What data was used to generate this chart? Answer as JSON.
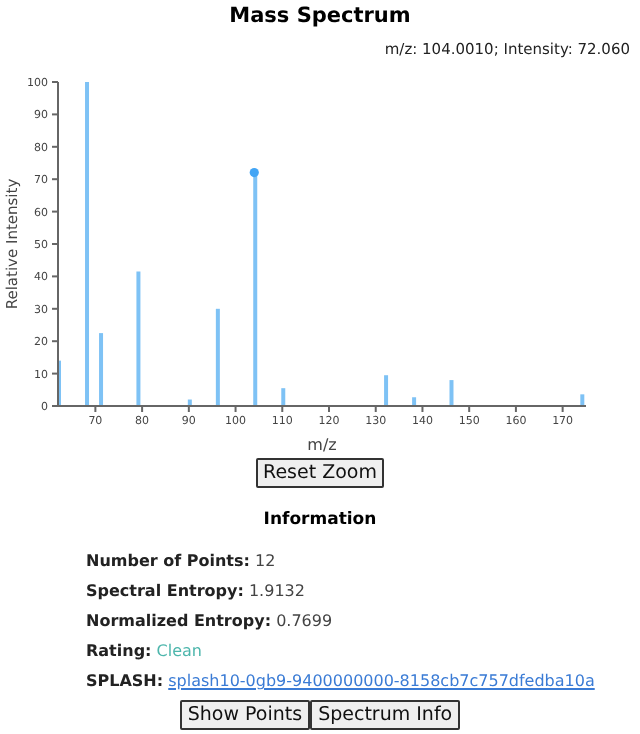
{
  "chart_data": {
    "type": "bar",
    "title": "Mass Spectrum",
    "xlabel": "m/z",
    "ylabel": "Relative Intensity",
    "xlim": [
      62,
      175
    ],
    "xticks": [
      70,
      80,
      90,
      100,
      110,
      120,
      130,
      140,
      150,
      160,
      170
    ],
    "ylim": [
      0,
      100
    ],
    "yticks": [
      0,
      10,
      20,
      30,
      40,
      50,
      60,
      70,
      80,
      90,
      100
    ],
    "series": [
      {
        "color": "#7ec2f5",
        "x": [
          62,
          68,
          71,
          79,
          90,
          96,
          104,
          110,
          132,
          138,
          146,
          174
        ],
        "values": [
          14,
          100,
          22.5,
          41.5,
          2,
          30,
          72.06,
          5.5,
          9.5,
          2.7,
          8,
          3.6
        ]
      },
      {
        "type": "scatter",
        "color": "#42a5f5",
        "x": [
          104.001
        ],
        "values": [
          72.06
        ]
      }
    ],
    "grid": false,
    "legend": false,
    "annotations": [
      "m/z: 104.0010; Intensity: 72.060",
      "Reset Zoom",
      "Information",
      "Number of Points: 12",
      "Spectral Entropy: 1.9132",
      "Normalized Entropy: 0.7699",
      "Rating: Clean",
      "SPLASH: splash10-0gb9-9400000000-8158cb7c757dfedba10a",
      "Show Points",
      "Spectrum Info"
    ]
  }
}
